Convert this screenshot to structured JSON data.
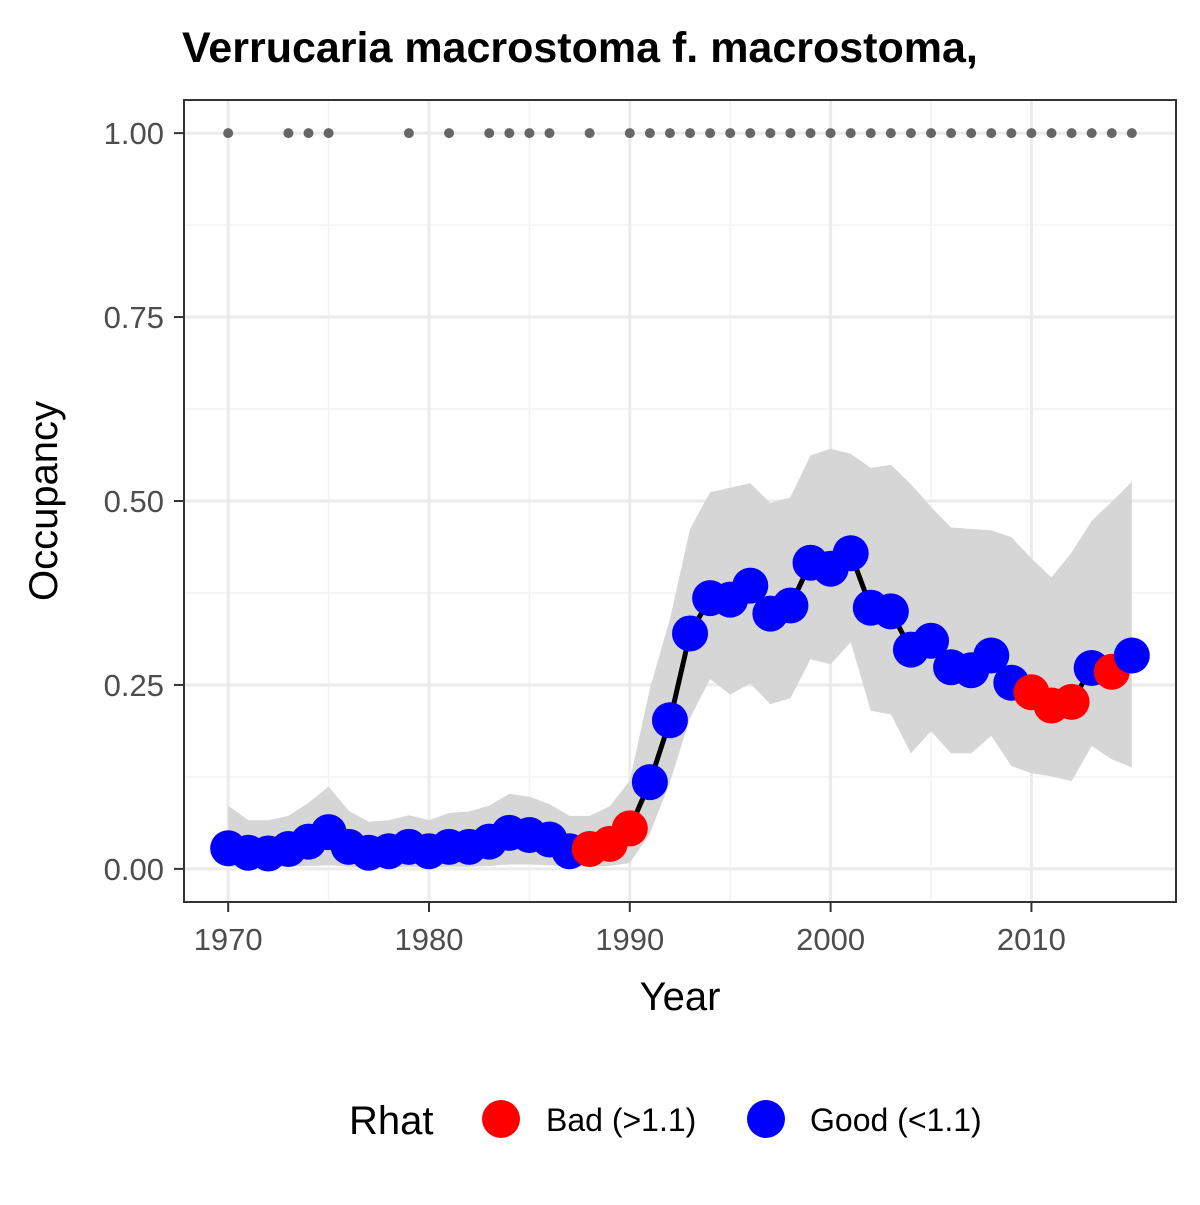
{
  "chart_data": {
    "type": "line",
    "title": "Verrucaria macrostoma f. macrostoma,",
    "xlabel": "Year",
    "ylabel": "Occupancy",
    "xlim": [
      1967.8,
      2017.2
    ],
    "ylim": [
      -0.045,
      1.045
    ],
    "x_ticks": [
      1970,
      1980,
      1990,
      2000,
      2010
    ],
    "x_tick_labels": [
      "1970",
      "1980",
      "1990",
      "2000",
      "2010"
    ],
    "y_ticks": [
      0,
      0.25,
      0.5,
      0.75,
      1
    ],
    "y_tick_labels": [
      "0.00",
      "0.25",
      "0.50",
      "0.75",
      "1.00"
    ],
    "grid": true,
    "legend_position": "bottom",
    "legend_title": "Rhat",
    "legend": [
      {
        "label": "Bad (>1.1)",
        "color": "#ff0000"
      },
      {
        "label": "Good (<1.1)",
        "color": "#0000ff"
      }
    ],
    "colors": {
      "line": "#000000",
      "ribbon": "#d6d6d6",
      "records": "#666666",
      "bad": "#ff0000",
      "good": "#0000ff"
    },
    "points": [
      {
        "year": 1970,
        "occupancy": 0.028,
        "lower": 0.003,
        "upper": 0.086,
        "rhat": "Good"
      },
      {
        "year": 1971,
        "occupancy": 0.022,
        "lower": 0.002,
        "upper": 0.066,
        "rhat": "Good"
      },
      {
        "year": 1972,
        "occupancy": 0.021,
        "lower": 0.002,
        "upper": 0.066,
        "rhat": "Good"
      },
      {
        "year": 1973,
        "occupancy": 0.027,
        "lower": 0.003,
        "upper": 0.072,
        "rhat": "Good"
      },
      {
        "year": 1974,
        "occupancy": 0.037,
        "lower": 0.004,
        "upper": 0.09,
        "rhat": "Good"
      },
      {
        "year": 1975,
        "occupancy": 0.05,
        "lower": 0.005,
        "upper": 0.112,
        "rhat": "Good"
      },
      {
        "year": 1976,
        "occupancy": 0.03,
        "lower": 0.003,
        "upper": 0.079,
        "rhat": "Good"
      },
      {
        "year": 1977,
        "occupancy": 0.022,
        "lower": 0.002,
        "upper": 0.064,
        "rhat": "Good"
      },
      {
        "year": 1978,
        "occupancy": 0.024,
        "lower": 0.002,
        "upper": 0.066,
        "rhat": "Good"
      },
      {
        "year": 1979,
        "occupancy": 0.03,
        "lower": 0.003,
        "upper": 0.073,
        "rhat": "Good"
      },
      {
        "year": 1980,
        "occupancy": 0.024,
        "lower": 0.002,
        "upper": 0.066,
        "rhat": "Good"
      },
      {
        "year": 1981,
        "occupancy": 0.03,
        "lower": 0.003,
        "upper": 0.076,
        "rhat": "Good"
      },
      {
        "year": 1982,
        "occupancy": 0.03,
        "lower": 0.003,
        "upper": 0.078,
        "rhat": "Good"
      },
      {
        "year": 1983,
        "occupancy": 0.037,
        "lower": 0.004,
        "upper": 0.086,
        "rhat": "Good"
      },
      {
        "year": 1984,
        "occupancy": 0.049,
        "lower": 0.006,
        "upper": 0.102,
        "rhat": "Good"
      },
      {
        "year": 1985,
        "occupancy": 0.046,
        "lower": 0.006,
        "upper": 0.098,
        "rhat": "Good"
      },
      {
        "year": 1986,
        "occupancy": 0.04,
        "lower": 0.005,
        "upper": 0.088,
        "rhat": "Good"
      },
      {
        "year": 1987,
        "occupancy": 0.024,
        "lower": 0.003,
        "upper": 0.072,
        "rhat": "Good"
      },
      {
        "year": 1988,
        "occupancy": 0.027,
        "lower": 0.003,
        "upper": 0.072,
        "rhat": "Bad"
      },
      {
        "year": 1989,
        "occupancy": 0.034,
        "lower": 0.004,
        "upper": 0.085,
        "rhat": "Bad"
      },
      {
        "year": 1990,
        "occupancy": 0.055,
        "lower": 0.008,
        "upper": 0.12,
        "rhat": "Bad"
      },
      {
        "year": 1991,
        "occupancy": 0.118,
        "lower": 0.048,
        "upper": 0.245,
        "rhat": "Good"
      },
      {
        "year": 1992,
        "occupancy": 0.202,
        "lower": 0.118,
        "upper": 0.34,
        "rhat": "Good"
      },
      {
        "year": 1993,
        "occupancy": 0.32,
        "lower": 0.205,
        "upper": 0.462,
        "rhat": "Good"
      },
      {
        "year": 1994,
        "occupancy": 0.368,
        "lower": 0.258,
        "upper": 0.512,
        "rhat": "Good"
      },
      {
        "year": 1995,
        "occupancy": 0.366,
        "lower": 0.237,
        "upper": 0.518,
        "rhat": "Good"
      },
      {
        "year": 1996,
        "occupancy": 0.385,
        "lower": 0.252,
        "upper": 0.524,
        "rhat": "Good"
      },
      {
        "year": 1997,
        "occupancy": 0.347,
        "lower": 0.224,
        "upper": 0.497,
        "rhat": "Good"
      },
      {
        "year": 1998,
        "occupancy": 0.358,
        "lower": 0.232,
        "upper": 0.505,
        "rhat": "Good"
      },
      {
        "year": 1999,
        "occupancy": 0.416,
        "lower": 0.285,
        "upper": 0.562,
        "rhat": "Good"
      },
      {
        "year": 2000,
        "occupancy": 0.408,
        "lower": 0.278,
        "upper": 0.571,
        "rhat": "Good"
      },
      {
        "year": 2001,
        "occupancy": 0.429,
        "lower": 0.308,
        "upper": 0.564,
        "rhat": "Good"
      },
      {
        "year": 2002,
        "occupancy": 0.355,
        "lower": 0.215,
        "upper": 0.545,
        "rhat": "Good"
      },
      {
        "year": 2003,
        "occupancy": 0.35,
        "lower": 0.21,
        "upper": 0.549,
        "rhat": "Good"
      },
      {
        "year": 2004,
        "occupancy": 0.298,
        "lower": 0.157,
        "upper": 0.523,
        "rhat": "Good"
      },
      {
        "year": 2005,
        "occupancy": 0.31,
        "lower": 0.187,
        "upper": 0.492,
        "rhat": "Good"
      },
      {
        "year": 2006,
        "occupancy": 0.274,
        "lower": 0.157,
        "upper": 0.464,
        "rhat": "Good"
      },
      {
        "year": 2007,
        "occupancy": 0.27,
        "lower": 0.157,
        "upper": 0.462,
        "rhat": "Good"
      },
      {
        "year": 2008,
        "occupancy": 0.29,
        "lower": 0.181,
        "upper": 0.46,
        "rhat": "Good"
      },
      {
        "year": 2009,
        "occupancy": 0.253,
        "lower": 0.14,
        "upper": 0.451,
        "rhat": "Good"
      },
      {
        "year": 2010,
        "occupancy": 0.24,
        "lower": 0.13,
        "upper": 0.422,
        "rhat": "Bad"
      },
      {
        "year": 2011,
        "occupancy": 0.222,
        "lower": 0.126,
        "upper": 0.396,
        "rhat": "Bad"
      },
      {
        "year": 2012,
        "occupancy": 0.227,
        "lower": 0.119,
        "upper": 0.43,
        "rhat": "Bad"
      },
      {
        "year": 2013,
        "occupancy": 0.273,
        "lower": 0.167,
        "upper": 0.473,
        "rhat": "Good"
      },
      {
        "year": 2014,
        "occupancy": 0.268,
        "lower": 0.149,
        "upper": 0.499,
        "rhat": "Bad"
      },
      {
        "year": 2015,
        "occupancy": 0.29,
        "lower": 0.138,
        "upper": 0.526,
        "rhat": "Good"
      }
    ],
    "record_years": [
      1970,
      1973,
      1974,
      1975,
      1979,
      1981,
      1983,
      1984,
      1985,
      1986,
      1988,
      1990,
      1991,
      1992,
      1993,
      1994,
      1995,
      1996,
      1997,
      1998,
      1999,
      2000,
      2001,
      2002,
      2003,
      2004,
      2005,
      2006,
      2007,
      2008,
      2009,
      2010,
      2011,
      2012,
      2013,
      2014,
      2015
    ],
    "record_value": 1.0
  }
}
